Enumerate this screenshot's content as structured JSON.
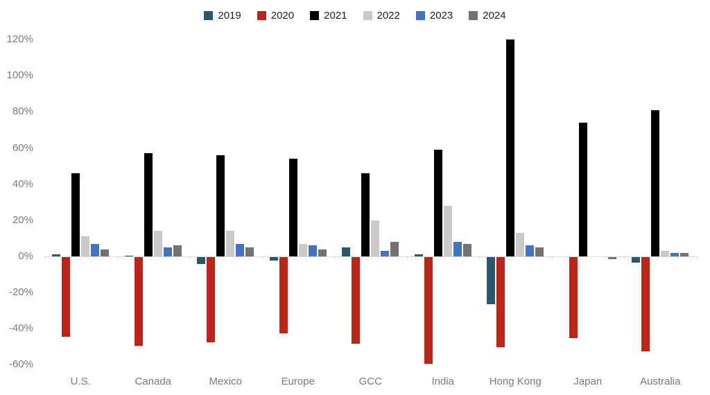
{
  "chart_data": {
    "type": "bar",
    "title": "",
    "xlabel": "",
    "ylabel": "",
    "categories": [
      "U.S.",
      "Canada",
      "Mexico",
      "Europe",
      "GCC",
      "India",
      "Hong Kong",
      "Japan",
      "Australia"
    ],
    "series": [
      {
        "name": "2019",
        "color": "#28596C",
        "values": [
          1,
          0.5,
          -4,
          -2,
          5,
          1,
          -26,
          0,
          -3
        ]
      },
      {
        "name": "2020",
        "color": "#BE2318",
        "values": [
          -44,
          -49,
          -47,
          -42,
          -48,
          -59,
          -50,
          -45,
          -52
        ]
      },
      {
        "name": "2021",
        "color": "#000000",
        "values": [
          46,
          57,
          56,
          54,
          46,
          59,
          120,
          74,
          81
        ]
      },
      {
        "name": "2022",
        "color": "#C9C9C9",
        "values": [
          11,
          14,
          14,
          7,
          20,
          28,
          13,
          0,
          3
        ]
      },
      {
        "name": "2023",
        "color": "#4472C4",
        "values": [
          7,
          5,
          7,
          6,
          3,
          8,
          6,
          0,
          2
        ]
      },
      {
        "name": "2024",
        "color": "#767171",
        "values": [
          4,
          6,
          5,
          4,
          8,
          7,
          5,
          -1,
          2
        ]
      }
    ],
    "y_tick_labels": [
      "120%",
      "100%",
      "80%",
      "60%",
      "40%",
      "20%",
      "0%",
      "-20%",
      "-40%",
      "-60%"
    ],
    "y_tick_values": [
      120,
      100,
      80,
      60,
      40,
      20,
      0,
      -20,
      -40,
      -60
    ],
    "ylim": [
      -60,
      120
    ],
    "grid": false,
    "legend_position": "top",
    "axis_color": "#d9d9d9",
    "tick_label_color": "#7a7a7a",
    "legend_text_color": "#1f1f1f"
  }
}
